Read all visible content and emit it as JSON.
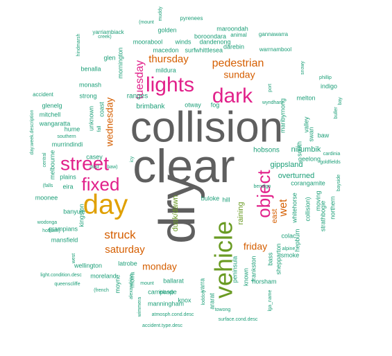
{
  "colors": {
    "gray": "#5f5f5f",
    "green": "#6a9b23",
    "gold": "#e0a000",
    "magenta": "#e1208a",
    "orange": "#d55e00",
    "teal": "#1b9e77",
    "purple": "#7570b3"
  },
  "words": [
    {
      "text": "collision",
      "color": "gray"
    },
    {
      "text": "clear",
      "color": "gray"
    },
    {
      "text": "dry",
      "color": "gray"
    },
    {
      "text": "day",
      "color": "gold"
    },
    {
      "text": "vehicle",
      "color": "green"
    },
    {
      "text": "street",
      "color": "magenta"
    },
    {
      "text": "fixed",
      "color": "magenta"
    },
    {
      "text": "lights",
      "color": "magenta"
    },
    {
      "text": "dark",
      "color": "magenta"
    },
    {
      "text": "object",
      "color": "magenta"
    },
    {
      "text": "pedestrian",
      "color": "orange"
    },
    {
      "text": "thursday",
      "color": "orange"
    },
    {
      "text": "sunday",
      "color": "orange"
    },
    {
      "text": "tuesday",
      "color": "magenta"
    },
    {
      "text": "wednesday",
      "color": "orange"
    },
    {
      "text": "struck",
      "color": "orange"
    },
    {
      "text": "saturday",
      "color": "orange"
    },
    {
      "text": "monday",
      "color": "orange"
    },
    {
      "text": "friday",
      "color": "orange"
    },
    {
      "text": "wet",
      "color": "orange"
    },
    {
      "text": "east",
      "color": "orange"
    },
    {
      "text": "raining",
      "color": "green"
    },
    {
      "text": "dusk/dawn",
      "color": "green"
    },
    {
      "text": "mornington",
      "color": "teal"
    },
    {
      "text": "ranges",
      "color": "teal"
    },
    {
      "text": "brimbank",
      "color": "teal"
    },
    {
      "text": "otway",
      "color": "teal"
    },
    {
      "text": "fog",
      "color": "teal"
    },
    {
      "text": "mildura",
      "color": "teal"
    },
    {
      "text": "maroondah",
      "color": "teal"
    },
    {
      "text": "boroondara",
      "color": "teal"
    },
    {
      "text": "animal",
      "color": "teal"
    },
    {
      "text": "gannawarra",
      "color": "teal"
    },
    {
      "text": "darebin",
      "color": "teal"
    },
    {
      "text": "whittlesea",
      "color": "teal"
    },
    {
      "text": "warrnambool",
      "color": "teal"
    },
    {
      "text": "moorabool",
      "color": "teal"
    },
    {
      "text": "winds",
      "color": "teal"
    },
    {
      "text": "dandenong",
      "color": "teal"
    },
    {
      "text": "golden",
      "color": "teal"
    },
    {
      "text": "yarriambiack",
      "color": "teal"
    },
    {
      "text": "pyrenees",
      "color": "teal"
    },
    {
      "text": "(mount",
      "color": "teal"
    },
    {
      "text": "muddy",
      "color": "teal"
    },
    {
      "text": "macedon",
      "color": "teal"
    },
    {
      "text": "surf",
      "color": "teal"
    },
    {
      "text": "glen",
      "color": "teal"
    },
    {
      "text": "benalla",
      "color": "teal"
    },
    {
      "text": "creek)",
      "color": "teal"
    },
    {
      "text": "hindmarsh",
      "color": "teal"
    },
    {
      "text": "monash",
      "color": "teal"
    },
    {
      "text": "strong",
      "color": "teal"
    },
    {
      "text": "accident",
      "color": "teal"
    },
    {
      "text": "glenelg",
      "color": "teal"
    },
    {
      "text": "mitchell",
      "color": "teal"
    },
    {
      "text": "wangaratta",
      "color": "teal"
    },
    {
      "text": "hume",
      "color": "teal"
    },
    {
      "text": "southern",
      "color": "teal"
    },
    {
      "text": "murrindindi",
      "color": "teal"
    },
    {
      "text": "casey",
      "color": "teal"
    },
    {
      "text": "dust",
      "color": "teal"
    },
    {
      "text": "baw)",
      "color": "teal"
    },
    {
      "text": "unknown",
      "color": "teal"
    },
    {
      "text": "coast",
      "color": "teal"
    },
    {
      "text": "fall",
      "color": "teal"
    },
    {
      "text": "day.week.description",
      "color": "teal"
    },
    {
      "text": "central",
      "color": "teal"
    },
    {
      "text": "melbourne",
      "color": "teal"
    },
    {
      "text": "(falls",
      "color": "teal"
    },
    {
      "text": "plains",
      "color": "teal"
    },
    {
      "text": "eira",
      "color": "teal"
    },
    {
      "text": "moonee",
      "color": "teal"
    },
    {
      "text": "icy",
      "color": "teal"
    },
    {
      "text": "banyule",
      "color": "teal"
    },
    {
      "text": "kingston",
      "color": "teal"
    },
    {
      "text": "wodonga",
      "color": "teal"
    },
    {
      "text": "hotham)",
      "color": "teal"
    },
    {
      "text": "grampians",
      "color": "teal"
    },
    {
      "text": "mansfield",
      "color": "teal"
    },
    {
      "text": "west",
      "color": "teal"
    },
    {
      "text": "wellington",
      "color": "teal"
    },
    {
      "text": "latrobe",
      "color": "teal"
    },
    {
      "text": "light.condition.desc",
      "color": "teal"
    },
    {
      "text": "moreland",
      "color": "teal"
    },
    {
      "text": "queenscliffe",
      "color": "teal"
    },
    {
      "text": "(french",
      "color": "teal"
    },
    {
      "text": "moyne",
      "color": "teal"
    },
    {
      "text": "moira",
      "color": "teal"
    },
    {
      "text": "mount",
      "color": "teal"
    },
    {
      "text": "alexandrina",
      "color": "teal"
    },
    {
      "text": "wimmera",
      "color": "teal"
    },
    {
      "text": "atmosph.cond.desc",
      "color": "teal"
    },
    {
      "text": "accident.type.desc",
      "color": "teal"
    },
    {
      "text": "island)",
      "color": "teal"
    },
    {
      "text": "manningham",
      "color": "teal"
    },
    {
      "text": "campaspe",
      "color": "teal"
    },
    {
      "text": "knox",
      "color": "teal"
    },
    {
      "text": "ballarat",
      "color": "teal"
    },
    {
      "text": "yarra",
      "color": "teal"
    },
    {
      "text": "loddon",
      "color": "teal"
    },
    {
      "text": "towong",
      "color": "teal"
    },
    {
      "text": "ararat",
      "color": "teal"
    },
    {
      "text": "surface.cond.desc",
      "color": "teal"
    },
    {
      "text": "lga_name",
      "color": "teal"
    },
    {
      "text": "horsham",
      "color": "teal"
    },
    {
      "text": "frankston",
      "color": "teal"
    },
    {
      "text": "known",
      "color": "teal"
    },
    {
      "text": "peninsula",
      "color": "teal"
    },
    {
      "text": "bass",
      "color": "teal"
    },
    {
      "text": "shepparton",
      "color": "teal"
    },
    {
      "text": "colac",
      "color": "teal"
    },
    {
      "text": "alpine",
      "color": "teal"
    },
    {
      "text": "smoke",
      "color": "teal"
    },
    {
      "text": "hepburn",
      "color": "teal"
    },
    {
      "text": "whitehorse",
      "color": "teal"
    },
    {
      "text": "collision)",
      "color": "teal"
    },
    {
      "text": "strathbogie",
      "color": "teal"
    },
    {
      "text": "northern",
      "color": "teal"
    },
    {
      "text": "bayside",
      "color": "teal"
    },
    {
      "text": "moving",
      "color": "teal"
    },
    {
      "text": "corangamite",
      "color": "teal"
    },
    {
      "text": "overturned",
      "color": "teal"
    },
    {
      "text": "gippsland",
      "color": "teal"
    },
    {
      "text": "geelong",
      "color": "teal"
    },
    {
      "text": "nillumbik",
      "color": "teal"
    },
    {
      "text": "cardinia",
      "color": "teal"
    },
    {
      "text": "goldfields",
      "color": "teal"
    },
    {
      "text": "hobsons",
      "color": "teal"
    },
    {
      "text": "bendigo",
      "color": "teal"
    },
    {
      "text": "buloke",
      "color": "teal"
    },
    {
      "text": "hill",
      "color": "teal"
    },
    {
      "text": "baw",
      "color": "teal"
    },
    {
      "text": "swan",
      "color": "teal"
    },
    {
      "text": "valley",
      "color": "teal"
    },
    {
      "text": "south",
      "color": "teal"
    },
    {
      "text": "melton",
      "color": "teal"
    },
    {
      "text": "indigo",
      "color": "teal"
    },
    {
      "text": "maribyrnong",
      "color": "teal"
    },
    {
      "text": "wyndham",
      "color": "teal"
    },
    {
      "text": "port",
      "color": "teal"
    },
    {
      "text": "phillip",
      "color": "teal"
    },
    {
      "text": "bay",
      "color": "teal"
    },
    {
      "text": "buller",
      "color": "teal"
    },
    {
      "text": "snowy",
      "color": "teal"
    },
    {
      "text": "stonnington",
      "color": "teal"
    }
  ]
}
